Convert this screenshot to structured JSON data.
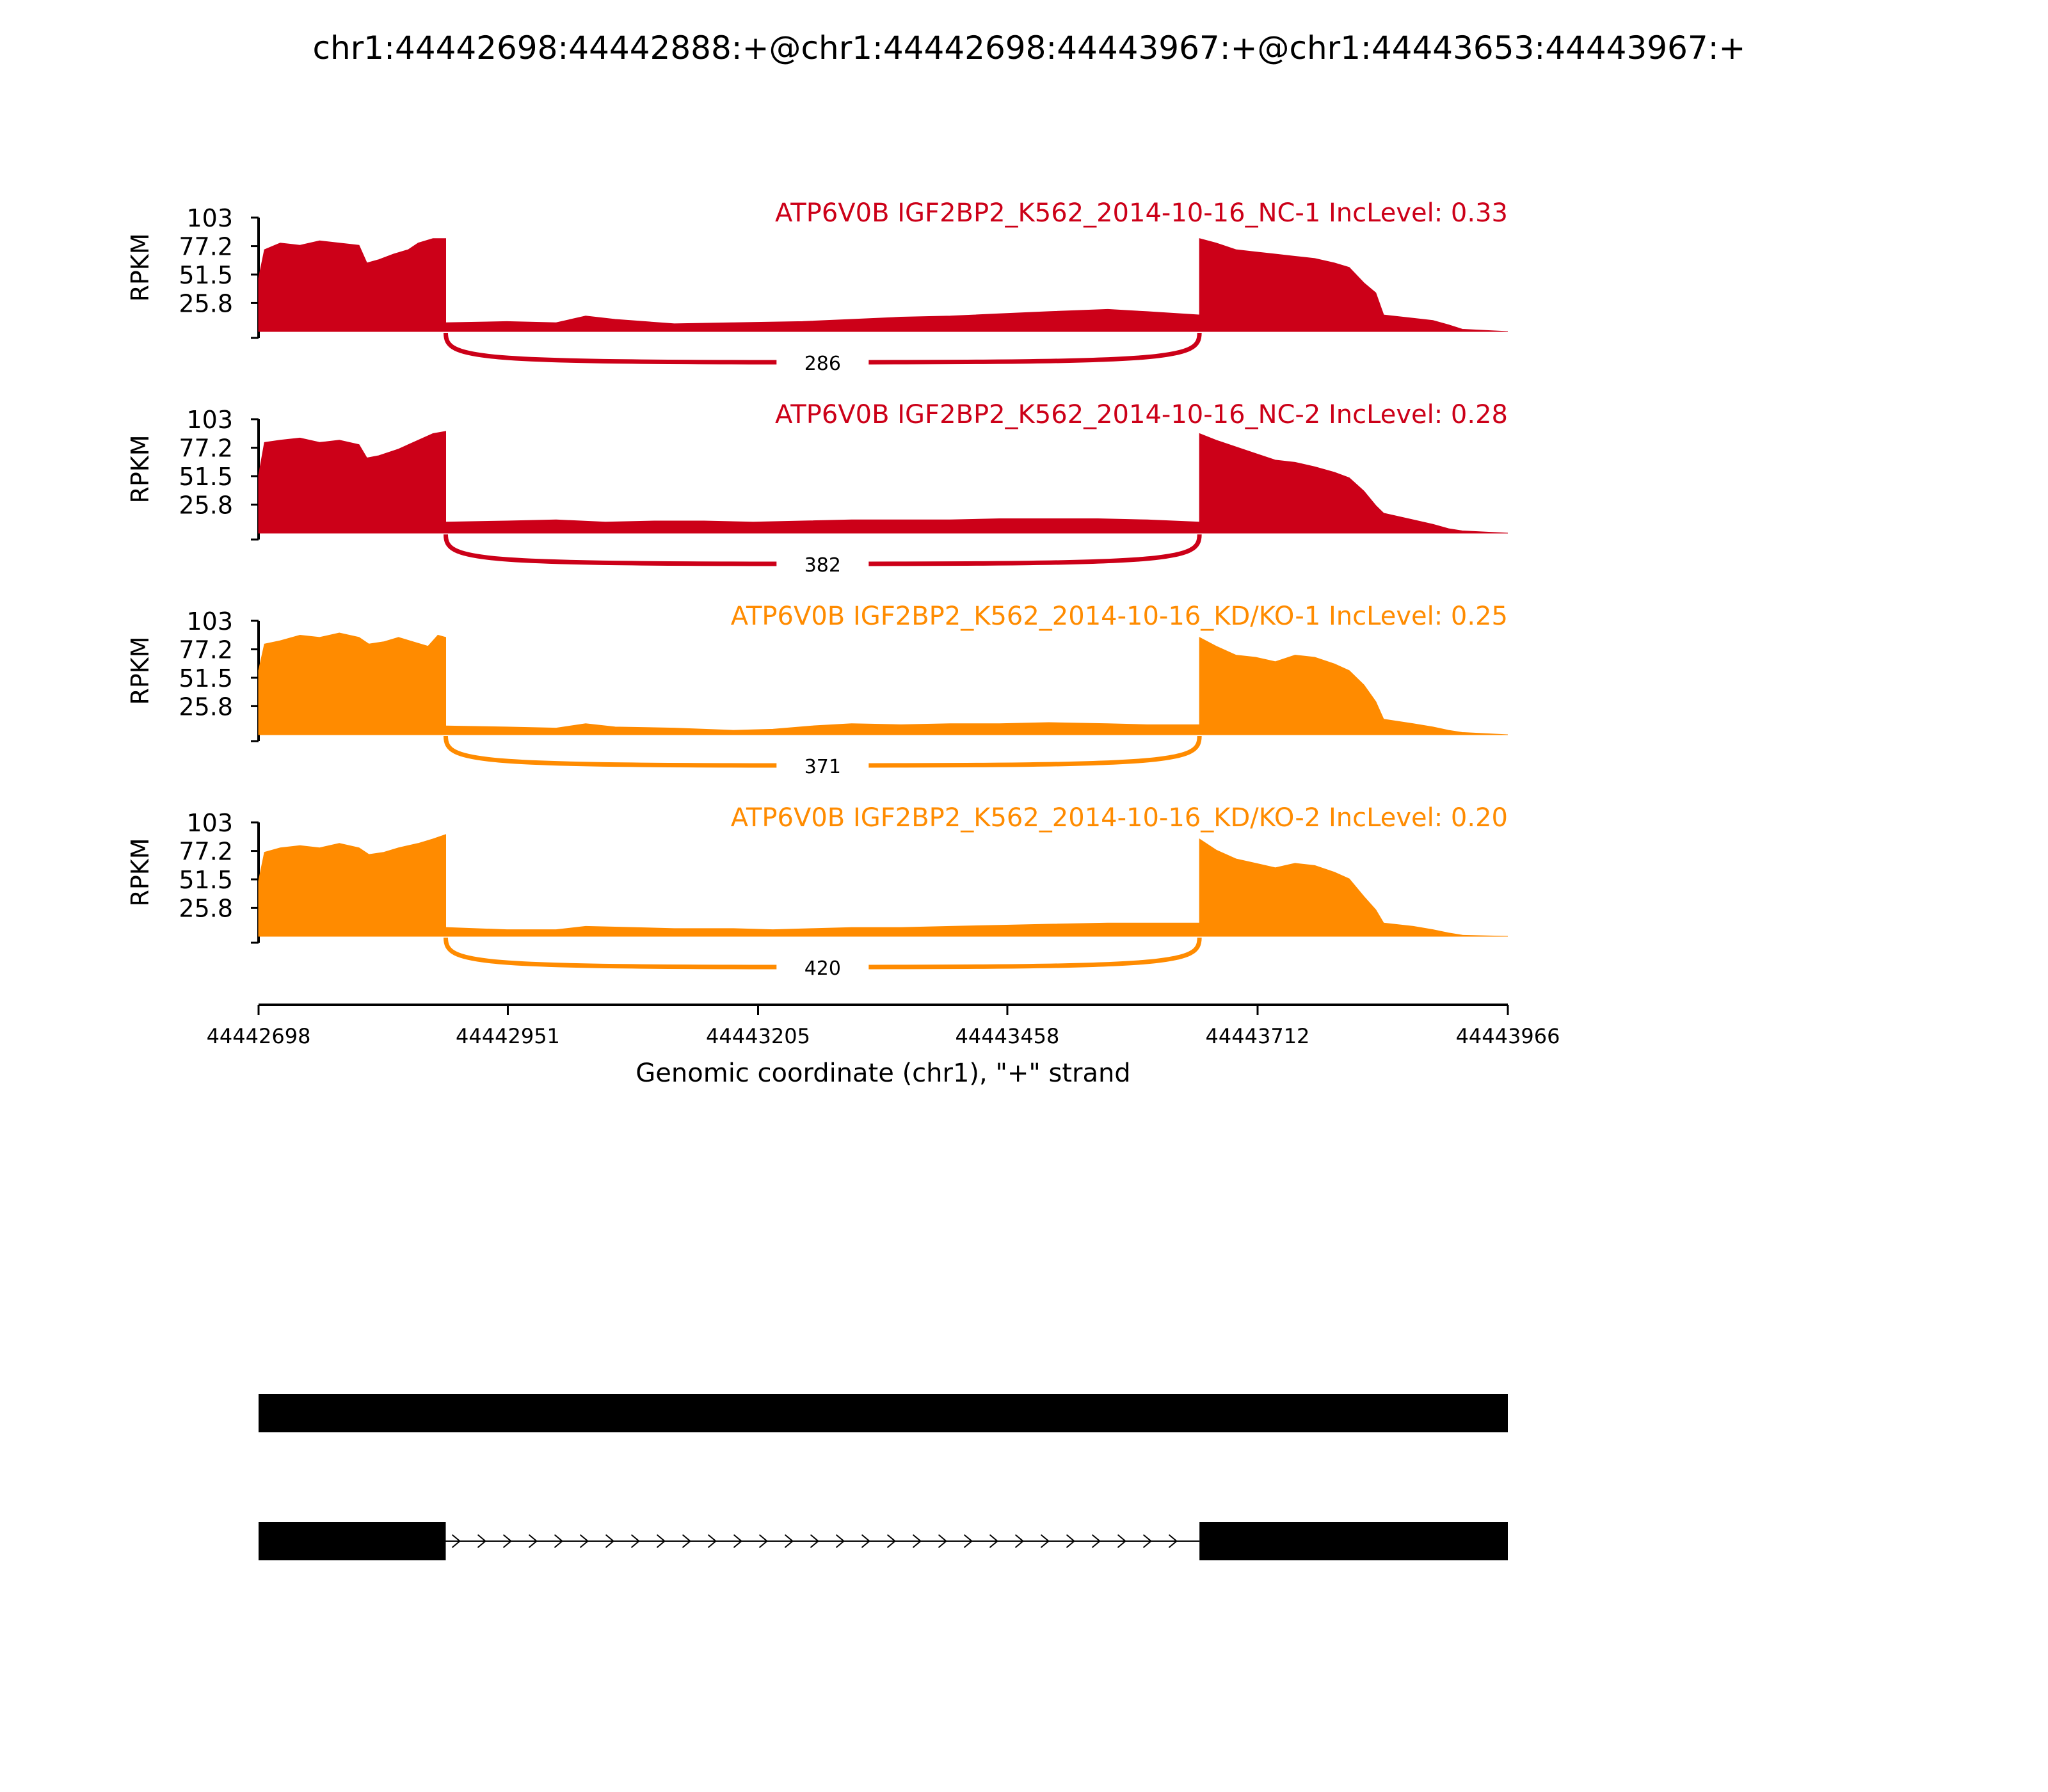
{
  "title": "chr1:44442698:44442888:+@chr1:44442698:44443967:+@chr1:44443653:44443967:+",
  "colors": {
    "nc": "#cc0018",
    "kd": "#ff8b00",
    "axis": "#000000",
    "gene": "#000000"
  },
  "chart_data": {
    "type": "area",
    "subtype": "sashimi",
    "x_range": [
      44442698,
      44443966
    ],
    "xticks": [
      "44442698",
      "44442951",
      "44443205",
      "44443458",
      "44443712",
      "44443966"
    ],
    "xlabel": "Genomic coordinate (chr1), \"+\" strand",
    "ylabel": "RPKM",
    "ylim": [
      0,
      103
    ],
    "yticks": [
      "103",
      "77.2",
      "51.5",
      "25.8"
    ],
    "exons": [
      [
        44442698,
        44442888
      ],
      [
        44443653,
        44443966
      ]
    ],
    "tracks": [
      {
        "label": "ATP6V0B IGF2BP2_K562_2014-10-16_NC-1 IncLevel: 0.33",
        "group": "nc",
        "junction": {
          "count": "286",
          "start": 44442888,
          "end": 44443653
        },
        "exon1": [
          [
            44442698,
            48
          ],
          [
            44442704,
            74
          ],
          [
            44442720,
            80
          ],
          [
            44442740,
            78
          ],
          [
            44442760,
            82
          ],
          [
            44442780,
            80
          ],
          [
            44442800,
            78
          ],
          [
            44442808,
            62
          ],
          [
            44442820,
            65
          ],
          [
            44442835,
            70
          ],
          [
            44442850,
            74
          ],
          [
            44442860,
            80
          ],
          [
            44442875,
            84
          ],
          [
            44442888,
            84
          ]
        ],
        "intron": [
          [
            44442888,
            8
          ],
          [
            44442950,
            9
          ],
          [
            44443000,
            8
          ],
          [
            44443030,
            14
          ],
          [
            44443060,
            11
          ],
          [
            44443120,
            7
          ],
          [
            44443180,
            8
          ],
          [
            44443250,
            9
          ],
          [
            44443300,
            11
          ],
          [
            44443350,
            13
          ],
          [
            44443400,
            14
          ],
          [
            44443450,
            16
          ],
          [
            44443500,
            18
          ],
          [
            44443560,
            20
          ],
          [
            44443600,
            18
          ],
          [
            44443653,
            15
          ]
        ],
        "exon2": [
          [
            44443653,
            84
          ],
          [
            44443670,
            80
          ],
          [
            44443690,
            74
          ],
          [
            44443710,
            72
          ],
          [
            44443730,
            70
          ],
          [
            44443750,
            68
          ],
          [
            44443770,
            66
          ],
          [
            44443790,
            62
          ],
          [
            44443805,
            58
          ],
          [
            44443820,
            44
          ],
          [
            44443832,
            35
          ],
          [
            44443840,
            15
          ],
          [
            44443870,
            12
          ],
          [
            44443890,
            10
          ],
          [
            44443906,
            6
          ],
          [
            44443920,
            2
          ],
          [
            44443966,
            0
          ]
        ]
      },
      {
        "label": "ATP6V0B IGF2BP2_K562_2014-10-16_NC-2 IncLevel: 0.28",
        "group": "nc",
        "junction": {
          "count": "382",
          "start": 44442888,
          "end": 44443653
        },
        "exon1": [
          [
            44442698,
            52
          ],
          [
            44442704,
            82
          ],
          [
            44442720,
            84
          ],
          [
            44442740,
            86
          ],
          [
            44442760,
            82
          ],
          [
            44442780,
            84
          ],
          [
            44442800,
            80
          ],
          [
            44442808,
            68
          ],
          [
            44442820,
            70
          ],
          [
            44442840,
            76
          ],
          [
            44442860,
            84
          ],
          [
            44442875,
            90
          ],
          [
            44442888,
            92
          ]
        ],
        "intron": [
          [
            44442888,
            10
          ],
          [
            44442950,
            11
          ],
          [
            44443000,
            12
          ],
          [
            44443050,
            10
          ],
          [
            44443100,
            11
          ],
          [
            44443150,
            11
          ],
          [
            44443200,
            10
          ],
          [
            44443250,
            11
          ],
          [
            44443300,
            12
          ],
          [
            44443350,
            12
          ],
          [
            44443400,
            12
          ],
          [
            44443450,
            13
          ],
          [
            44443500,
            13
          ],
          [
            44443550,
            13
          ],
          [
            44443600,
            12
          ],
          [
            44443653,
            10
          ]
        ],
        "exon2": [
          [
            44443653,
            90
          ],
          [
            44443670,
            84
          ],
          [
            44443690,
            78
          ],
          [
            44443710,
            72
          ],
          [
            44443730,
            66
          ],
          [
            44443750,
            64
          ],
          [
            44443770,
            60
          ],
          [
            44443790,
            55
          ],
          [
            44443805,
            50
          ],
          [
            44443820,
            38
          ],
          [
            44443832,
            25
          ],
          [
            44443840,
            18
          ],
          [
            44443870,
            12
          ],
          [
            44443890,
            8
          ],
          [
            44443906,
            4
          ],
          [
            44443920,
            2
          ],
          [
            44443966,
            0
          ]
        ]
      },
      {
        "label": "ATP6V0B IGF2BP2_K562_2014-10-16_KD/KO-1 IncLevel: 0.25",
        "group": "kd",
        "junction": {
          "count": "371",
          "start": 44442888,
          "end": 44443653
        },
        "exon1": [
          [
            44442698,
            58
          ],
          [
            44442704,
            82
          ],
          [
            44442720,
            85
          ],
          [
            44442740,
            90
          ],
          [
            44442760,
            88
          ],
          [
            44442780,
            92
          ],
          [
            44442800,
            88
          ],
          [
            44442810,
            82
          ],
          [
            44442825,
            84
          ],
          [
            44442840,
            88
          ],
          [
            44442855,
            84
          ],
          [
            44442870,
            80
          ],
          [
            44442880,
            90
          ],
          [
            44442888,
            88
          ]
        ],
        "intron": [
          [
            44442888,
            8
          ],
          [
            44442950,
            7
          ],
          [
            44443000,
            6
          ],
          [
            44443030,
            10
          ],
          [
            44443060,
            7
          ],
          [
            44443120,
            6
          ],
          [
            44443180,
            4
          ],
          [
            44443220,
            5
          ],
          [
            44443260,
            8
          ],
          [
            44443300,
            10
          ],
          [
            44443350,
            9
          ],
          [
            44443400,
            10
          ],
          [
            44443450,
            10
          ],
          [
            44443500,
            11
          ],
          [
            44443560,
            10
          ],
          [
            44443600,
            9
          ],
          [
            44443653,
            9
          ]
        ],
        "exon2": [
          [
            44443653,
            88
          ],
          [
            44443670,
            80
          ],
          [
            44443690,
            72
          ],
          [
            44443710,
            70
          ],
          [
            44443730,
            66
          ],
          [
            44443750,
            72
          ],
          [
            44443770,
            70
          ],
          [
            44443790,
            64
          ],
          [
            44443805,
            58
          ],
          [
            44443820,
            45
          ],
          [
            44443832,
            30
          ],
          [
            44443840,
            14
          ],
          [
            44443870,
            10
          ],
          [
            44443890,
            7
          ],
          [
            44443906,
            4
          ],
          [
            44443920,
            2
          ],
          [
            44443966,
            0
          ]
        ]
      },
      {
        "label": "ATP6V0B IGF2BP2_K562_2014-10-16_KD/KO-2 IncLevel: 0.20",
        "group": "kd",
        "junction": {
          "count": "420",
          "start": 44442888,
          "end": 44443653
        },
        "exon1": [
          [
            44442698,
            50
          ],
          [
            44442704,
            76
          ],
          [
            44442720,
            80
          ],
          [
            44442740,
            82
          ],
          [
            44442760,
            80
          ],
          [
            44442780,
            84
          ],
          [
            44442800,
            80
          ],
          [
            44442810,
            74
          ],
          [
            44442825,
            76
          ],
          [
            44442840,
            80
          ],
          [
            44442860,
            84
          ],
          [
            44442875,
            88
          ],
          [
            44442888,
            92
          ]
        ],
        "intron": [
          [
            44442888,
            8
          ],
          [
            44442950,
            6
          ],
          [
            44443000,
            6
          ],
          [
            44443030,
            9
          ],
          [
            44443080,
            8
          ],
          [
            44443120,
            7
          ],
          [
            44443180,
            7
          ],
          [
            44443220,
            6
          ],
          [
            44443260,
            7
          ],
          [
            44443300,
            8
          ],
          [
            44443350,
            8
          ],
          [
            44443400,
            9
          ],
          [
            44443450,
            10
          ],
          [
            44443500,
            11
          ],
          [
            44443560,
            12
          ],
          [
            44443600,
            12
          ],
          [
            44443653,
            12
          ]
        ],
        "exon2": [
          [
            44443653,
            88
          ],
          [
            44443670,
            78
          ],
          [
            44443690,
            70
          ],
          [
            44443710,
            66
          ],
          [
            44443730,
            62
          ],
          [
            44443750,
            66
          ],
          [
            44443770,
            64
          ],
          [
            44443790,
            58
          ],
          [
            44443805,
            52
          ],
          [
            44443820,
            36
          ],
          [
            44443832,
            24
          ],
          [
            44443840,
            12
          ],
          [
            44443870,
            9
          ],
          [
            44443890,
            6
          ],
          [
            44443906,
            3
          ],
          [
            44443920,
            1
          ],
          [
            44443966,
            0
          ]
        ]
      }
    ],
    "gene_models": [
      {
        "exons": [
          [
            44442698,
            44443966
          ]
        ],
        "introns": []
      },
      {
        "exons": [
          [
            44442698,
            44442888
          ],
          [
            44443653,
            44443966
          ]
        ],
        "introns": [
          [
            44442888,
            44443653
          ]
        ]
      }
    ]
  }
}
